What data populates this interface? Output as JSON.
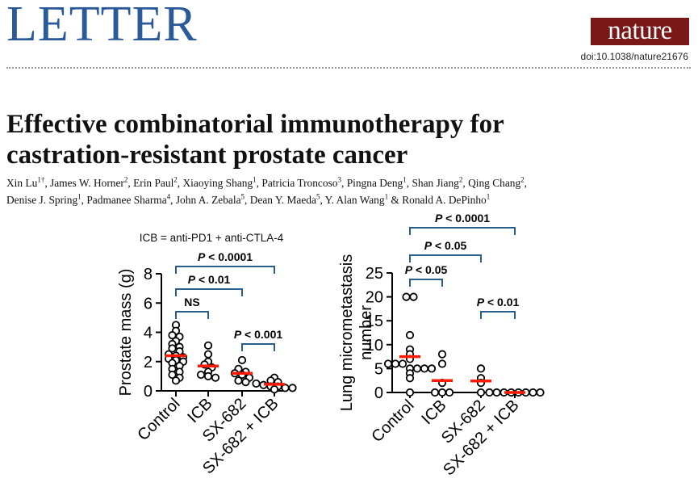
{
  "header": {
    "section": "LETTER",
    "journal_logo": "nature",
    "doi": "doi:10.1038/nature21676"
  },
  "paper": {
    "title_lines": [
      "Effective combinatorial immunotherapy for",
      "castration-resistant prostate cancer"
    ],
    "authors": [
      {
        "name": "Xin Lu",
        "sup": "1†",
        "sep": ", "
      },
      {
        "name": "James W. Horner",
        "sup": "2",
        "sep": ", "
      },
      {
        "name": "Erin Paul",
        "sup": "2",
        "sep": ", "
      },
      {
        "name": "Xiaoying Shang",
        "sup": "1",
        "sep": ", "
      },
      {
        "name": "Patricia Troncoso",
        "sup": "3",
        "sep": ", "
      },
      {
        "name": "Pingna Deng",
        "sup": "1",
        "sep": ", "
      },
      {
        "name": "Shan Jiang",
        "sup": "2",
        "sep": ", "
      },
      {
        "name": "Qing Chang",
        "sup": "2",
        "sep": ",",
        "break": true
      },
      {
        "name": "Denise J. Spring",
        "sup": "1",
        "sep": ", "
      },
      {
        "name": "Padmanee Sharma",
        "sup": "4",
        "sep": ", "
      },
      {
        "name": "John A.  Zebala",
        "sup": "5",
        "sep": ", "
      },
      {
        "name": "Dean Y. Maeda",
        "sup": "5",
        "sep": ", "
      },
      {
        "name": "Y. Alan Wang",
        "sup": "1",
        "sep": " & "
      },
      {
        "name": "Ronald A. DePinho",
        "sup": "1",
        "sep": ""
      }
    ]
  },
  "colors": {
    "header_blue": "#2b5a9b",
    "nature_red": "#7a1717",
    "mean_red": "#ff1a00",
    "bracket_blue": "#2a5d92"
  },
  "chart_data": [
    {
      "type": "scatter",
      "subtype": "dot-plot",
      "title": "ICB = anti-PD1 + anti-CTLA-4",
      "xlabel": "",
      "ylabel": "Prostate mass (g)",
      "categories": [
        "Control",
        "ICB",
        "SX-682",
        "SX-682 + ICB"
      ],
      "ylim": [
        0,
        8
      ],
      "yticks": [
        0,
        2,
        4,
        6,
        8
      ],
      "points": [
        [
          4.5,
          4.1,
          3.8,
          3.7,
          3.4,
          3.2,
          3.0,
          2.9,
          2.7,
          2.5,
          2.4,
          2.3,
          2.2,
          2.1,
          2.0,
          1.9,
          1.7,
          1.5,
          1.3,
          1.1,
          0.9,
          0.7
        ],
        [
          3.1,
          2.5,
          2.0,
          1.8,
          1.6,
          1.3,
          1.1,
          1.0,
          0.9
        ],
        [
          2.1,
          1.5,
          1.3,
          1.2,
          1.1,
          0.9,
          0.7,
          0.6
        ],
        [
          0.9,
          0.7,
          0.6,
          0.5,
          0.4,
          0.3,
          0.3,
          0.2,
          0.2,
          0.1
        ]
      ],
      "means": [
        2.4,
        1.7,
        1.2,
        0.45
      ],
      "comparisons": [
        {
          "from": "Control",
          "to": "ICB",
          "label": "NS"
        },
        {
          "from": "Control",
          "to": "SX-682",
          "label": "P < 0.01"
        },
        {
          "from": "Control",
          "to": "SX-682 + ICB",
          "label": "P < 0.0001"
        },
        {
          "from": "SX-682",
          "to": "SX-682 + ICB",
          "label": "P < 0.001"
        }
      ]
    },
    {
      "type": "scatter",
      "subtype": "dot-plot",
      "title": "",
      "xlabel": "",
      "ylabel": "Lung micrometastasis number",
      "ylabel_lines": [
        "Lung micrometastasis",
        "number"
      ],
      "categories": [
        "Control",
        "ICB",
        "SX-682",
        "SX-682 + ICB"
      ],
      "ylim": [
        0,
        25
      ],
      "yticks": [
        0,
        5,
        10,
        15,
        20,
        25
      ],
      "points": [
        [
          20,
          20,
          12,
          9,
          8,
          7,
          6,
          6,
          6,
          5,
          5,
          5,
          5,
          4,
          3,
          0
        ],
        [
          8,
          6,
          2,
          0,
          0,
          0
        ],
        [
          5,
          3,
          2,
          0
        ],
        [
          0,
          0,
          0,
          0,
          0,
          0,
          0,
          0
        ]
      ],
      "means": [
        7.5,
        2.5,
        2.4,
        0
      ],
      "comparisons": [
        {
          "from": "Control",
          "to": "ICB",
          "label": "P < 0.05"
        },
        {
          "from": "Control",
          "to": "SX-682",
          "label": "P < 0.05"
        },
        {
          "from": "Control",
          "to": "SX-682 + ICB",
          "label": "P < 0.0001"
        },
        {
          "from": "SX-682",
          "to": "SX-682 + ICB",
          "label": "P < 0.01"
        }
      ]
    }
  ]
}
